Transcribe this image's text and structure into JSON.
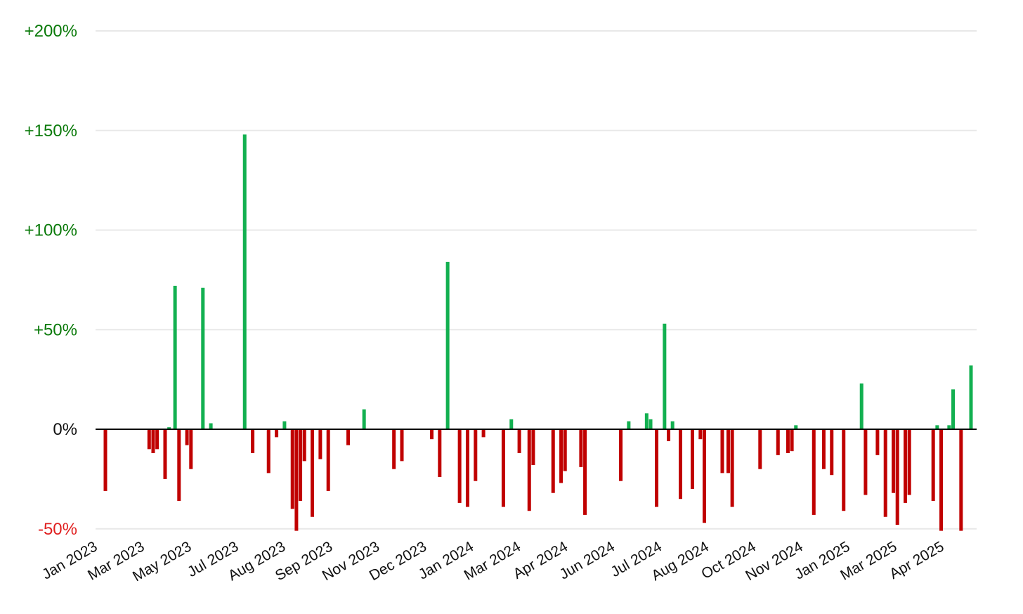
{
  "chart_data": {
    "type": "bar",
    "title": "",
    "xlabel": "",
    "ylabel": "",
    "ylim": [
      -50,
      200
    ],
    "y_ticks": [
      {
        "value": -50,
        "label": "-50%"
      },
      {
        "value": 0,
        "label": "0%"
      },
      {
        "value": 50,
        "label": "+50%"
      },
      {
        "value": 100,
        "label": "+100%"
      },
      {
        "value": 150,
        "label": "+150%"
      },
      {
        "value": 200,
        "label": "+200%"
      }
    ],
    "x_tick_labels": [
      "Jan 2023",
      "Mar 2023",
      "May 2023",
      "Jul 2023",
      "Aug 2023",
      "Sep 2023",
      "Nov 2023",
      "Dec 2023",
      "Jan 2024",
      "Mar 2024",
      "Apr 2024",
      "Jun 2024",
      "Jul 2024",
      "Aug 2024",
      "Oct 2024",
      "Nov 2024",
      "Jan 2025",
      "Mar 2025",
      "Apr 2025"
    ],
    "grid": true,
    "colors": {
      "positive": "#12b050",
      "negative": "#c00000",
      "positive_label": "#0a7a0a",
      "negative_label": "#e02020",
      "grid": "#e8e8e8",
      "zero_line": "#000000"
    },
    "x_range_days": [
      0,
      860
    ],
    "bars": [
      {
        "x": 5,
        "value": -31
      },
      {
        "x": 27,
        "value": -10
      },
      {
        "x": 29,
        "value": -12
      },
      {
        "x": 31,
        "value": -10
      },
      {
        "x": 35,
        "value": -25
      },
      {
        "x": 37,
        "value": 1
      },
      {
        "x": 40,
        "value": 72
      },
      {
        "x": 42,
        "value": -36
      },
      {
        "x": 46,
        "value": -8
      },
      {
        "x": 48,
        "value": -20
      },
      {
        "x": 54,
        "value": 71
      },
      {
        "x": 58,
        "value": 3
      },
      {
        "x": 75,
        "value": 148
      },
      {
        "x": 79,
        "value": -12
      },
      {
        "x": 87,
        "value": -22
      },
      {
        "x": 91,
        "value": -4
      },
      {
        "x": 95,
        "value": 4
      },
      {
        "x": 99,
        "value": -40
      },
      {
        "x": 101,
        "value": -51
      },
      {
        "x": 103,
        "value": -36
      },
      {
        "x": 105,
        "value": -16
      },
      {
        "x": 109,
        "value": -44
      },
      {
        "x": 113,
        "value": -15
      },
      {
        "x": 117,
        "value": -31
      },
      {
        "x": 127,
        "value": -8
      },
      {
        "x": 135,
        "value": 10
      },
      {
        "x": 150,
        "value": -20
      },
      {
        "x": 154,
        "value": -16
      },
      {
        "x": 169,
        "value": -5
      },
      {
        "x": 173,
        "value": -24
      },
      {
        "x": 177,
        "value": 84
      },
      {
        "x": 183,
        "value": -37
      },
      {
        "x": 187,
        "value": -39
      },
      {
        "x": 191,
        "value": -26
      },
      {
        "x": 195,
        "value": -4
      },
      {
        "x": 205,
        "value": -39
      },
      {
        "x": 209,
        "value": 5
      },
      {
        "x": 213,
        "value": -12
      },
      {
        "x": 218,
        "value": -41
      },
      {
        "x": 220,
        "value": -18
      },
      {
        "x": 230,
        "value": -32
      },
      {
        "x": 234,
        "value": -27
      },
      {
        "x": 236,
        "value": -21
      },
      {
        "x": 244,
        "value": -19
      },
      {
        "x": 246,
        "value": -43
      },
      {
        "x": 264,
        "value": -26
      },
      {
        "x": 268,
        "value": 4
      },
      {
        "x": 277,
        "value": 8
      },
      {
        "x": 279,
        "value": 5
      },
      {
        "x": 282,
        "value": -39
      },
      {
        "x": 286,
        "value": 53
      },
      {
        "x": 288,
        "value": -6
      },
      {
        "x": 290,
        "value": 4
      },
      {
        "x": 294,
        "value": -35
      },
      {
        "x": 300,
        "value": -30
      },
      {
        "x": 304,
        "value": -5
      },
      {
        "x": 306,
        "value": -47
      },
      {
        "x": 315,
        "value": -22
      },
      {
        "x": 318,
        "value": -22
      },
      {
        "x": 320,
        "value": -39
      },
      {
        "x": 334,
        "value": -20
      },
      {
        "x": 343,
        "value": -13
      },
      {
        "x": 348,
        "value": -12
      },
      {
        "x": 350,
        "value": -11
      },
      {
        "x": 352,
        "value": 2
      },
      {
        "x": 361,
        "value": -43
      },
      {
        "x": 366,
        "value": -20
      },
      {
        "x": 370,
        "value": -23
      },
      {
        "x": 376,
        "value": -41
      },
      {
        "x": 385,
        "value": 23
      },
      {
        "x": 387,
        "value": -33
      },
      {
        "x": 393,
        "value": -13
      },
      {
        "x": 397,
        "value": -44
      },
      {
        "x": 401,
        "value": -32
      },
      {
        "x": 403,
        "value": -48
      },
      {
        "x": 407,
        "value": -37
      },
      {
        "x": 409,
        "value": -33
      },
      {
        "x": 421,
        "value": -36
      },
      {
        "x": 423,
        "value": 2
      },
      {
        "x": 425,
        "value": -51
      },
      {
        "x": 429,
        "value": 2
      },
      {
        "x": 431,
        "value": 20
      },
      {
        "x": 435,
        "value": -51
      },
      {
        "x": 440,
        "value": 32
      }
    ]
  }
}
